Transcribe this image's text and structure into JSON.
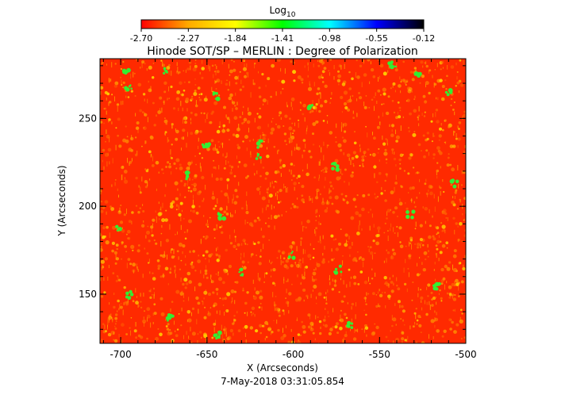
{
  "colorbar": {
    "label_main": "Log",
    "label_sub": "10",
    "ticks": [
      "-2.70",
      "-2.27",
      "-1.84",
      "-1.41",
      "-0.98",
      "-0.55",
      "-0.12"
    ],
    "range": [
      -2.7,
      -0.12
    ],
    "colormap": [
      "#ff0000",
      "#ffaa00",
      "#ffff00",
      "#00ff00",
      "#00ffff",
      "#0000ff",
      "#000000"
    ]
  },
  "plot": {
    "title": "Hinode SOT/SP – MERLIN : Degree of Polarization",
    "xlabel": "X (Arcseconds)",
    "ylabel": "Y (Arcseconds)",
    "xticks": [
      "-700",
      "-650",
      "-600",
      "-550",
      "-500"
    ],
    "yticks": [
      "150",
      "200",
      "250"
    ],
    "xlim": [
      -712,
      -500
    ],
    "ylim": [
      122,
      284
    ],
    "timestamp": "7-May-2018 03:31:05.854"
  },
  "map": {
    "background": "#ff2a00",
    "mottle_colors": [
      "#ff6a00",
      "#ff8c00",
      "#ffd000"
    ],
    "patch_color": "#33ee33"
  }
}
